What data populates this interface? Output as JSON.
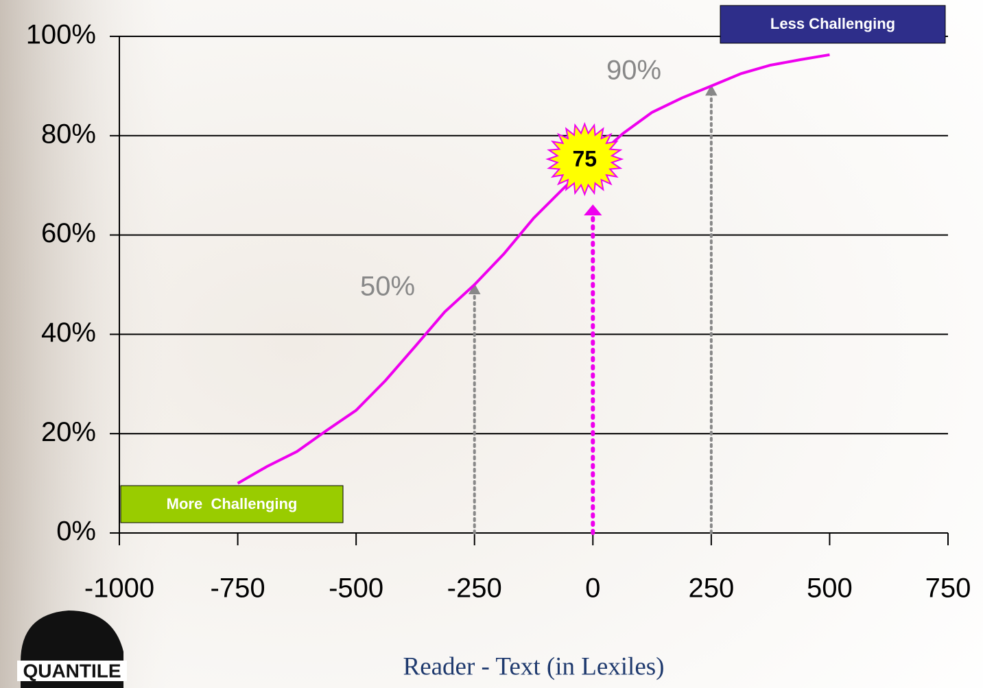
{
  "chart_data": {
    "type": "line",
    "x_axis_label": "Reader - Text (in Lexiles)",
    "x": [
      -750,
      -688,
      -625,
      -563,
      -500,
      -438,
      -375,
      -313,
      -250,
      -188,
      -125,
      -63,
      0,
      63,
      125,
      188,
      250,
      313,
      375,
      438,
      500
    ],
    "values": [
      10,
      13.4,
      16.4,
      20.6,
      24.7,
      30.7,
      37.6,
      44.5,
      50,
      56.2,
      63.4,
      69.3,
      75,
      80.4,
      84.7,
      87.6,
      90,
      92.5,
      94.2,
      95.3,
      96.3
    ],
    "color": "#ee00ee",
    "xlim": [
      -1000,
      750
    ],
    "xticks": [
      -1000,
      -750,
      -500,
      -250,
      0,
      250,
      500,
      750
    ],
    "ylim": [
      0,
      100
    ],
    "yticks": [
      {
        "value": 0,
        "label": "0%"
      },
      {
        "value": 20,
        "label": "20%"
      },
      {
        "value": 40,
        "label": "40%"
      },
      {
        "value": 60,
        "label": "60%"
      },
      {
        "value": 80,
        "label": "80%"
      },
      {
        "value": 100,
        "label": "100%"
      }
    ],
    "grid": true,
    "annotations": [
      {
        "text": "50%",
        "x": -250,
        "y": 50
      },
      {
        "text": "90%",
        "x": 250,
        "y": 90
      },
      {
        "text": "75",
        "x": 0,
        "y": 75
      }
    ],
    "boxes": {
      "less": "Less Challenging",
      "more": "More  Challenging"
    },
    "logo": "QUANTILE"
  }
}
